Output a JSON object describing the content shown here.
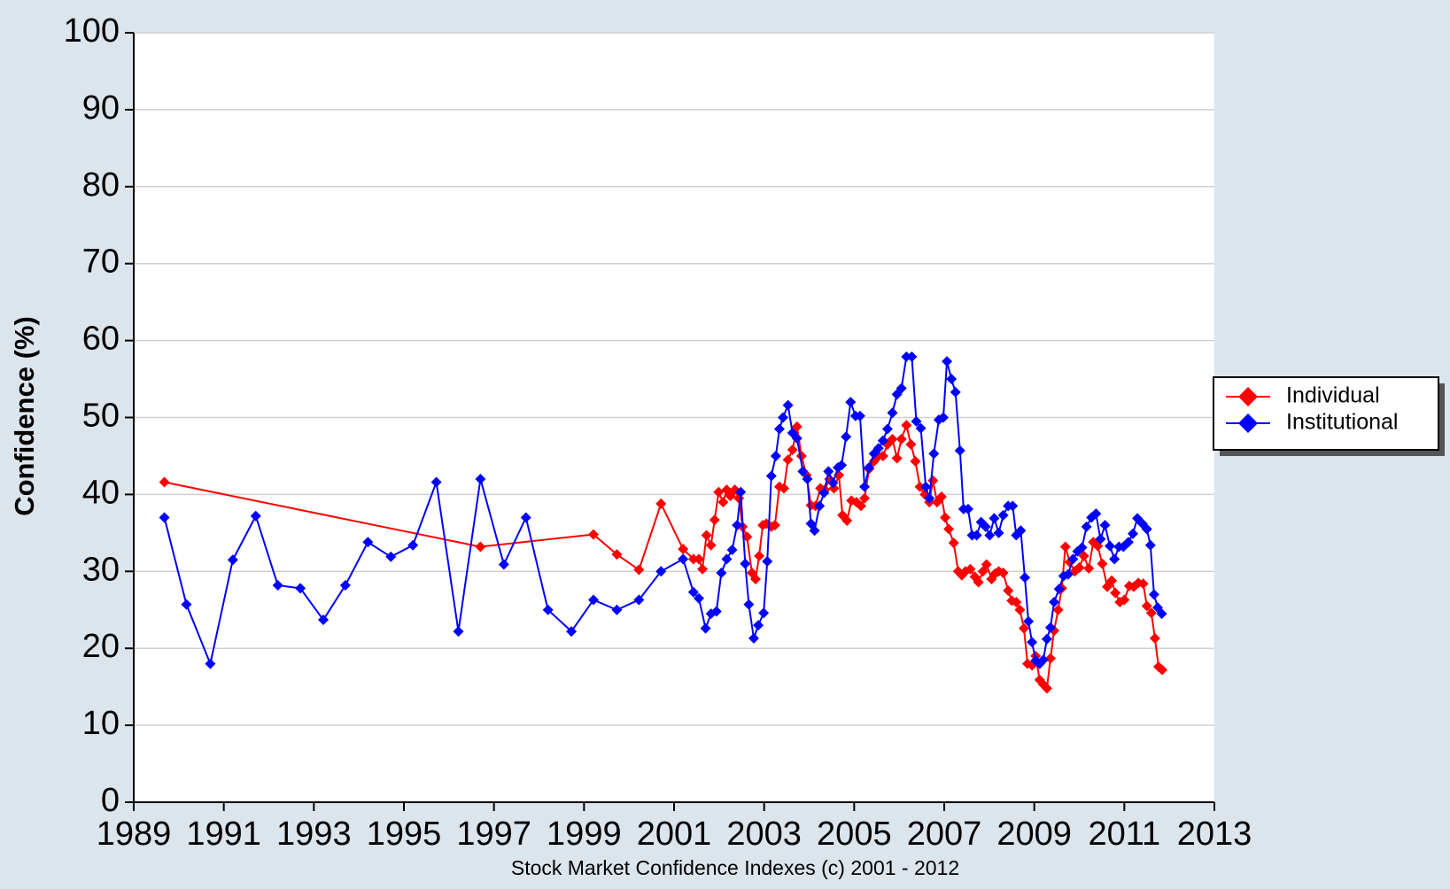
{
  "chart_data": {
    "type": "line",
    "y_label": "Confidence (%)",
    "caption": "Stock Market Confidence Indexes (c) 2001 - 2012",
    "xlim": [
      1989,
      2013
    ],
    "xticks": [
      1989,
      1991,
      1993,
      1995,
      1997,
      1999,
      2001,
      2003,
      2005,
      2007,
      2009,
      2011,
      2013
    ],
    "ylim": [
      0,
      100
    ],
    "yticks": [
      0,
      10,
      20,
      30,
      40,
      50,
      60,
      70,
      80,
      90,
      100
    ],
    "grid": true,
    "legend": "right",
    "series": [
      {
        "name": "Individual",
        "color": "#ff0000",
        "x": [
          1989.68,
          1996.7,
          1999.21,
          1999.73,
          2000.22,
          2000.71,
          2001.2,
          2001.43,
          2001.55,
          2001.63,
          2001.72,
          2001.82,
          2001.9,
          2001.99,
          2002.09,
          2002.17,
          2002.25,
          2002.35,
          2002.44,
          2002.52,
          2002.62,
          2002.73,
          2002.81,
          2002.89,
          2002.97,
          2003.05,
          2003.16,
          2003.24,
          2003.34,
          2003.44,
          2003.53,
          2003.63,
          2003.73,
          2003.83,
          2003.94,
          2004.04,
          2004.14,
          2004.25,
          2004.35,
          2004.45,
          2004.55,
          2004.66,
          2004.74,
          2004.84,
          2004.94,
          2005.05,
          2005.15,
          2005.23,
          2005.33,
          2005.44,
          2005.54,
          2005.64,
          2005.74,
          2005.85,
          2005.95,
          2006.05,
          2006.16,
          2006.26,
          2006.36,
          2006.46,
          2006.57,
          2006.67,
          2006.75,
          2006.84,
          2006.94,
          2007.02,
          2007.1,
          2007.21,
          2007.31,
          2007.39,
          2007.47,
          2007.58,
          2007.68,
          2007.76,
          2007.86,
          2007.94,
          2008.05,
          2008.13,
          2008.21,
          2008.31,
          2008.42,
          2008.5,
          2008.6,
          2008.68,
          2008.77,
          2008.85,
          2008.95,
          2009.03,
          2009.12,
          2009.2,
          2009.28,
          2009.36,
          2009.44,
          2009.53,
          2009.61,
          2009.69,
          2009.79,
          2009.9,
          2010.0,
          2010.1,
          2010.21,
          2010.31,
          2010.41,
          2010.51,
          2010.62,
          2010.72,
          2010.8,
          2010.9,
          2011.0,
          2011.11,
          2011.21,
          2011.31,
          2011.42,
          2011.5,
          2011.6,
          2011.68,
          2011.76,
          2011.84
        ],
        "values": [
          41.6,
          33.2,
          34.8,
          32.2,
          30.2,
          38.8,
          32.9,
          31.6,
          31.6,
          30.3,
          34.7,
          33.4,
          36.7,
          40.3,
          39,
          40.6,
          39.8,
          40.6,
          39.5,
          35.8,
          34.5,
          29.8,
          29,
          32,
          36,
          36.2,
          35.8,
          36,
          41,
          40.8,
          44.5,
          45.8,
          48.8,
          45,
          42.5,
          38.6,
          38.5,
          40.8,
          40.6,
          42,
          40.8,
          42.5,
          37.3,
          36.6,
          39.2,
          39,
          38.5,
          39.5,
          43.3,
          44.3,
          45,
          45,
          46.5,
          47.2,
          44.7,
          47.2,
          49,
          46.5,
          44.3,
          41,
          40,
          39,
          41.8,
          39,
          39.7,
          37,
          35.5,
          33.7,
          30,
          29.5,
          30,
          30.3,
          29.3,
          28.6,
          30,
          30.9,
          29,
          29.7,
          30,
          29.8,
          27.5,
          26.2,
          26,
          25,
          22.6,
          18,
          17.8,
          19,
          15.9,
          15.3,
          14.8,
          18.7,
          22.3,
          25,
          27.8,
          33.2,
          31.2,
          30,
          30.5,
          32,
          30.4,
          33.8,
          33.3,
          31,
          28,
          28.8,
          27.2,
          26,
          26.3,
          28.1,
          28,
          28.5,
          28.4,
          25.5,
          24.6,
          21.3,
          17.6,
          17.2
        ]
      },
      {
        "name": "Institutional",
        "color": "#0000ff",
        "x": [
          1989.68,
          1990.17,
          1990.7,
          1991.2,
          1991.71,
          1992.2,
          1992.7,
          1993.21,
          1993.7,
          1994.2,
          1994.71,
          1995.2,
          1995.72,
          1996.21,
          1996.7,
          1997.22,
          1997.71,
          1998.2,
          1998.72,
          1999.21,
          1999.73,
          2000.22,
          2000.71,
          2001.2,
          2001.43,
          2001.55,
          2001.7,
          2001.82,
          2001.94,
          2002.05,
          2002.17,
          2002.29,
          2002.4,
          2002.48,
          2002.58,
          2002.66,
          2002.77,
          2002.87,
          2002.99,
          2003.07,
          2003.16,
          2003.26,
          2003.34,
          2003.42,
          2003.53,
          2003.63,
          2003.73,
          2003.86,
          2003.96,
          2004.04,
          2004.12,
          2004.23,
          2004.33,
          2004.43,
          2004.53,
          2004.64,
          2004.72,
          2004.82,
          2004.92,
          2005.03,
          2005.13,
          2005.23,
          2005.33,
          2005.44,
          2005.54,
          2005.64,
          2005.74,
          2005.85,
          2005.95,
          2006.05,
          2006.16,
          2006.28,
          2006.38,
          2006.48,
          2006.59,
          2006.67,
          2006.77,
          2006.88,
          2006.98,
          2007.06,
          2007.16,
          2007.25,
          2007.35,
          2007.43,
          2007.53,
          2007.62,
          2007.72,
          2007.82,
          2007.92,
          2008.01,
          2008.11,
          2008.21,
          2008.31,
          2008.42,
          2008.52,
          2008.6,
          2008.7,
          2008.79,
          2008.87,
          2008.95,
          2009.03,
          2009.12,
          2009.2,
          2009.28,
          2009.36,
          2009.44,
          2009.55,
          2009.65,
          2009.75,
          2009.86,
          2009.96,
          2010.06,
          2010.16,
          2010.27,
          2010.37,
          2010.47,
          2010.57,
          2010.68,
          2010.78,
          2010.88,
          2010.98,
          2011.09,
          2011.19,
          2011.29,
          2011.4,
          2011.5,
          2011.58,
          2011.66,
          2011.74,
          2011.83
        ],
        "values": [
          37,
          25.7,
          18,
          31.5,
          37.2,
          28.2,
          27.8,
          23.7,
          28.2,
          33.8,
          31.9,
          33.4,
          41.6,
          22.2,
          42,
          30.9,
          37,
          25,
          22.2,
          26.3,
          25,
          26.3,
          30,
          31.6,
          27.3,
          26.5,
          22.6,
          24.5,
          24.8,
          29.8,
          31.6,
          32.8,
          36,
          40.3,
          31,
          25.7,
          21.3,
          23,
          24.6,
          31.3,
          42.4,
          45,
          48.5,
          50,
          51.6,
          48,
          47.3,
          43,
          42,
          36.2,
          35.3,
          38.5,
          40.2,
          43,
          41.5,
          43.5,
          43.8,
          47.5,
          52,
          50.2,
          50.2,
          41,
          43.5,
          45.3,
          46,
          47,
          48.5,
          50.6,
          53,
          53.8,
          57.9,
          57.9,
          49.5,
          48.6,
          41,
          39.5,
          45.3,
          49.7,
          50,
          57.3,
          55,
          53.3,
          45.7,
          38.1,
          38.1,
          34.7,
          34.7,
          36.4,
          35.8,
          34.7,
          36.9,
          35,
          37.3,
          38.5,
          38.5,
          34.7,
          35.3,
          29.2,
          23.5,
          20.8,
          18.4,
          18,
          18.5,
          21.2,
          22.7,
          26,
          27.7,
          29.4,
          29.6,
          31.6,
          32.6,
          33.1,
          35.8,
          37,
          37.5,
          34.2,
          36,
          33.3,
          31.6,
          33.2,
          33.2,
          33.8,
          34.9,
          36.9,
          36.2,
          35.5,
          33.4,
          27,
          25.3,
          24.5
        ]
      }
    ]
  }
}
